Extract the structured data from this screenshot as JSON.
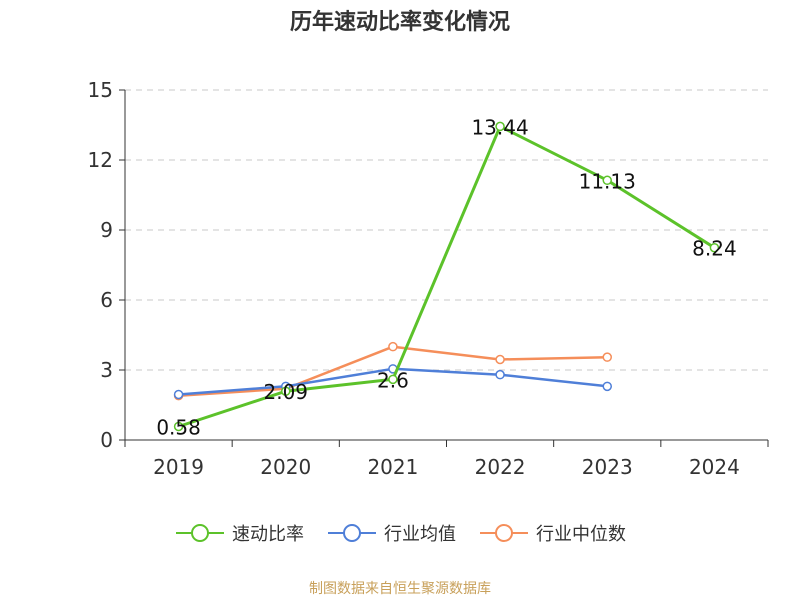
{
  "chart_data": {
    "type": "line",
    "title": "历年速动比率变化情况",
    "categories": [
      "2019",
      "2020",
      "2021",
      "2022",
      "2023",
      "2024"
    ],
    "ylim": [
      0,
      15
    ],
    "yticks": [
      0,
      3,
      6,
      9,
      12,
      15
    ],
    "grid": "horizontal dashed",
    "legend_position": "bottom",
    "series": [
      {
        "name": "速动比率",
        "color": "#5cc22a",
        "values": [
          0.58,
          2.09,
          2.6,
          13.44,
          11.13,
          8.24
        ],
        "labels": [
          "0.58",
          "2.09",
          "2.6",
          "13.44",
          "11.13",
          "8.24"
        ]
      },
      {
        "name": "行业均值",
        "color": "#4f7fd8",
        "values": [
          1.95,
          2.3,
          3.05,
          2.8,
          2.3,
          null
        ]
      },
      {
        "name": "行业中位数",
        "color": "#f58e5a",
        "values": [
          1.9,
          2.2,
          4.0,
          3.45,
          3.55,
          null
        ]
      }
    ]
  },
  "source_text": "制图数据来自恒生聚源数据库"
}
